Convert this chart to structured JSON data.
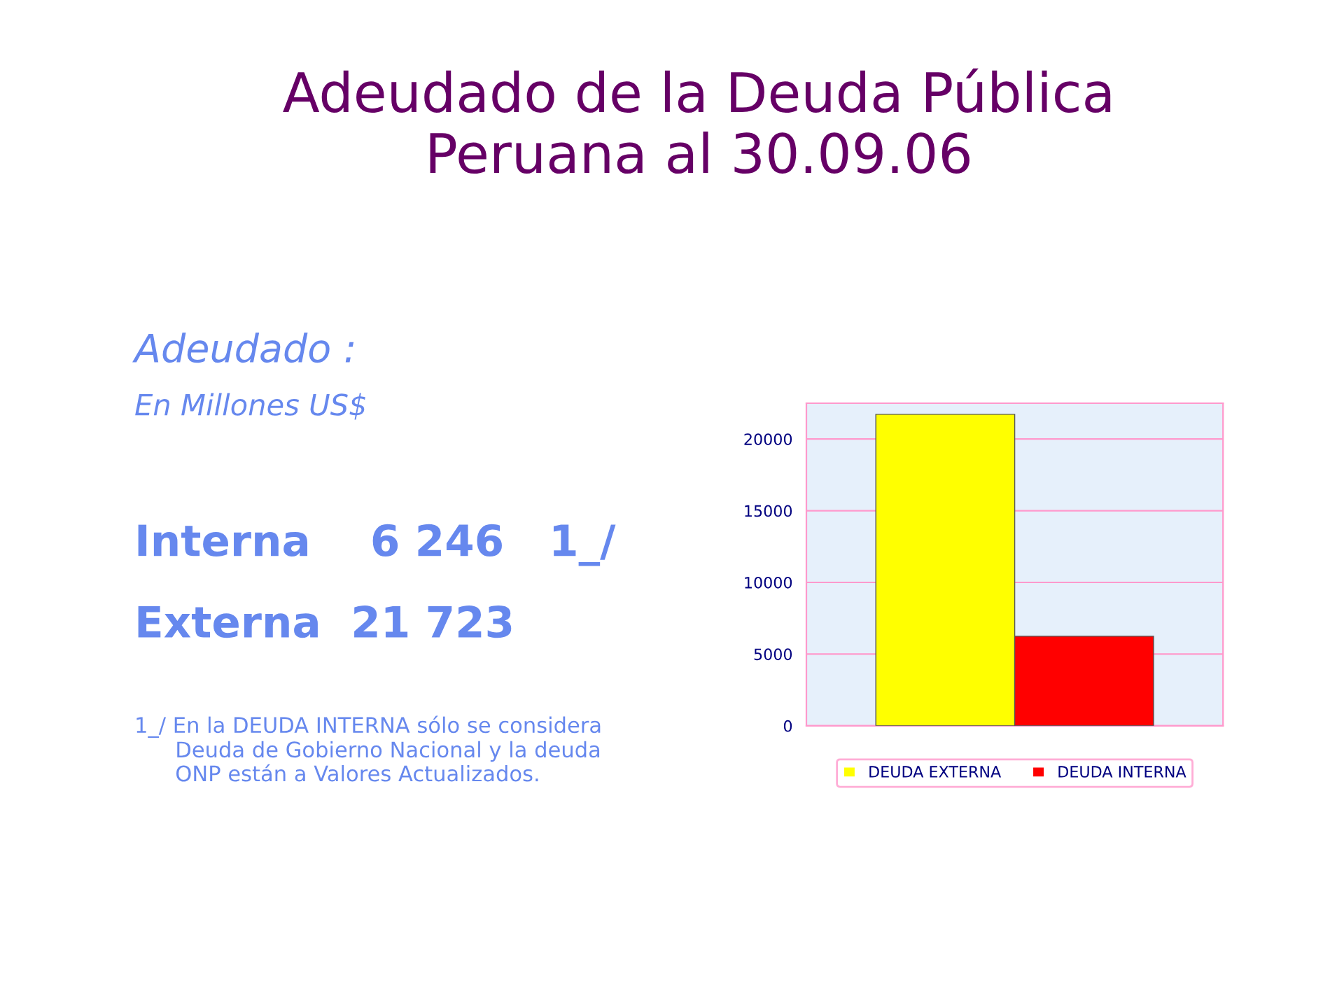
{
  "chart_data": {
    "type": "bar",
    "title": "Adeudado de la Deuda Pública\nPeruana al 30.09.06",
    "categories": [
      null
    ],
    "series": [
      {
        "name": "DEUDA EXTERNA",
        "color": "#ffff00",
        "values": [
          21723
        ]
      },
      {
        "name": "DEUDA INTERNA",
        "color": "#ff0000",
        "values": [
          6246
        ]
      }
    ],
    "ylim": [
      0,
      22500
    ],
    "yticks": [
      0,
      5000,
      10000,
      15000,
      20000
    ],
    "grid": "y",
    "legend": "bottom",
    "annotations": [
      "Adeudado :",
      "En Millones US$",
      "Interna    6 246   1_/",
      "Externa  21 723",
      "1_/ En la DEUDA INTERNA sólo se considera\n      Deuda de Gobierno Nacional y la deuda\n      ONP están a Valores Actualizados."
    ]
  }
}
